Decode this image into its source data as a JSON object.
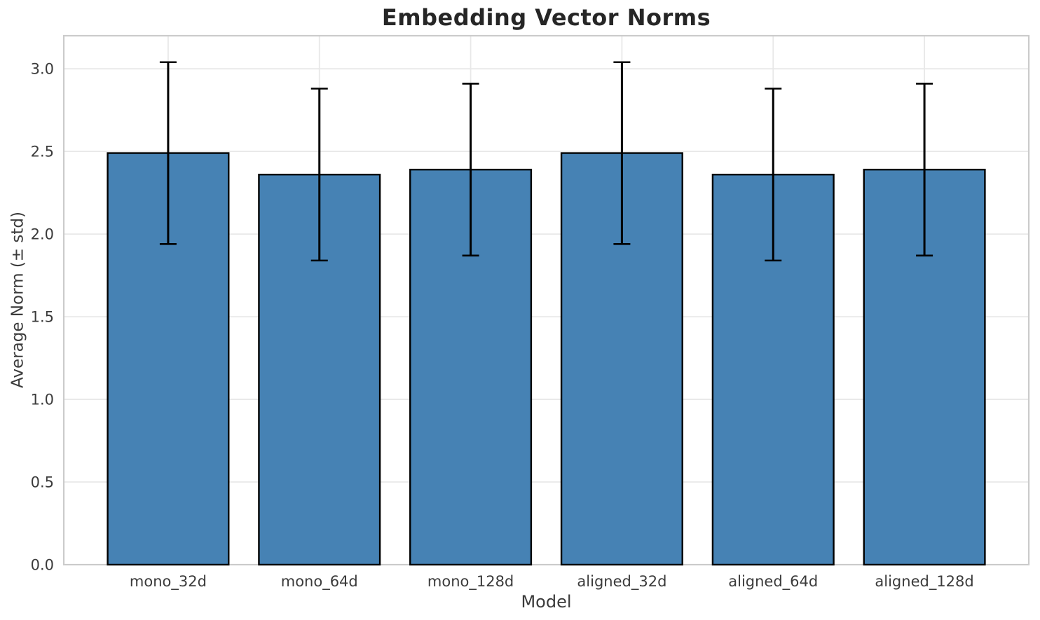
{
  "title": "Embedding Vector Norms",
  "chart_data": {
    "type": "bar",
    "title": "Embedding Vector Norms",
    "xlabel": "Model",
    "ylabel": "Average Norm (± std)",
    "categories": [
      "mono_32d",
      "mono_64d",
      "mono_128d",
      "aligned_32d",
      "aligned_64d",
      "aligned_128d"
    ],
    "values": [
      2.49,
      2.36,
      2.39,
      2.49,
      2.36,
      2.39
    ],
    "errors_std": [
      0.55,
      0.52,
      0.52,
      0.55,
      0.52,
      0.52
    ],
    "error_bar_tops": [
      3.04,
      2.88,
      2.91,
      3.04,
      2.88,
      2.91
    ],
    "error_bar_bottoms": [
      1.94,
      1.84,
      1.87,
      1.94,
      1.84,
      1.87
    ],
    "yticks": [
      0.0,
      0.5,
      1.0,
      1.5,
      2.0,
      2.5,
      3.0
    ],
    "ytick_labels": [
      "0.0",
      "0.5",
      "1.0",
      "1.5",
      "2.0",
      "2.5",
      "3.0"
    ],
    "ylim": [
      0,
      3.2
    ],
    "xlim": [
      -0.69,
      5.69
    ],
    "bar_width": 0.8,
    "grid": true,
    "legend_position": "none",
    "colors": {
      "bar_fill": "#4682B4",
      "bar_edge": "#000000",
      "error_bar": "#000000",
      "grid_line": "#e8e8e8",
      "spine": "#cbcbcb",
      "tick_label": "#3b3b3b",
      "title": "#262626",
      "background": "#ffffff"
    }
  }
}
